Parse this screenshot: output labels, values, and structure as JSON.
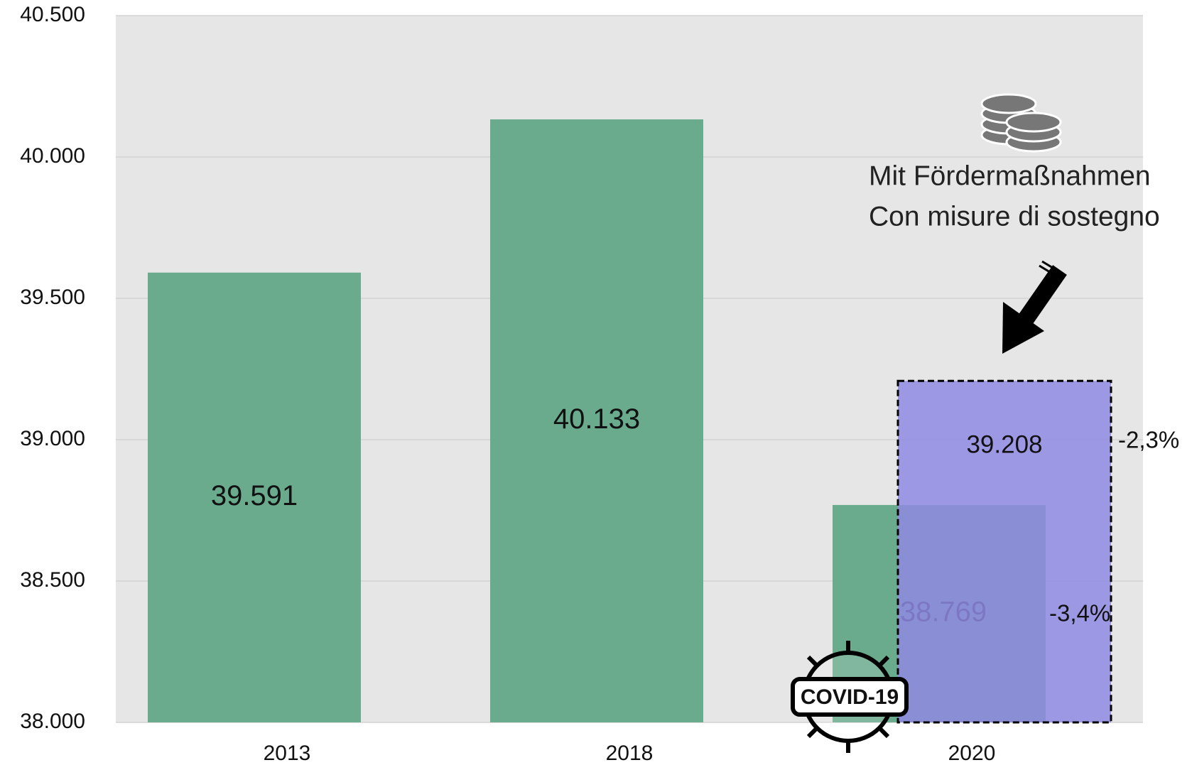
{
  "chart_data": {
    "type": "bar",
    "categories": [
      "2013",
      "2018",
      "2020"
    ],
    "series": [
      {
        "color": "#6aab8e",
        "values": [
          39591,
          40133,
          38769
        ],
        "value_labels": [
          "39.591",
          "40.133",
          "38.769"
        ]
      },
      {
        "color": "#8f8ae2",
        "values": [
          null,
          null,
          39208
        ],
        "value_labels": [
          null,
          null,
          "39.208"
        ]
      }
    ],
    "ylim": [
      38000,
      40500
    ],
    "yticks": [
      {
        "value": 38000,
        "label": "38.000"
      },
      {
        "value": 38500,
        "label": "38.500"
      },
      {
        "value": 39000,
        "label": "39.000"
      },
      {
        "value": 39500,
        "label": "39.500"
      },
      {
        "value": 40000,
        "label": "40.000"
      },
      {
        "value": 40500,
        "label": "40.500"
      }
    ],
    "grid": true,
    "annotations": [
      "Mit Fördermaßnahmen",
      "Con misure di sostegno",
      "-2,3%",
      "-3,4%",
      "COVID-19"
    ]
  }
}
